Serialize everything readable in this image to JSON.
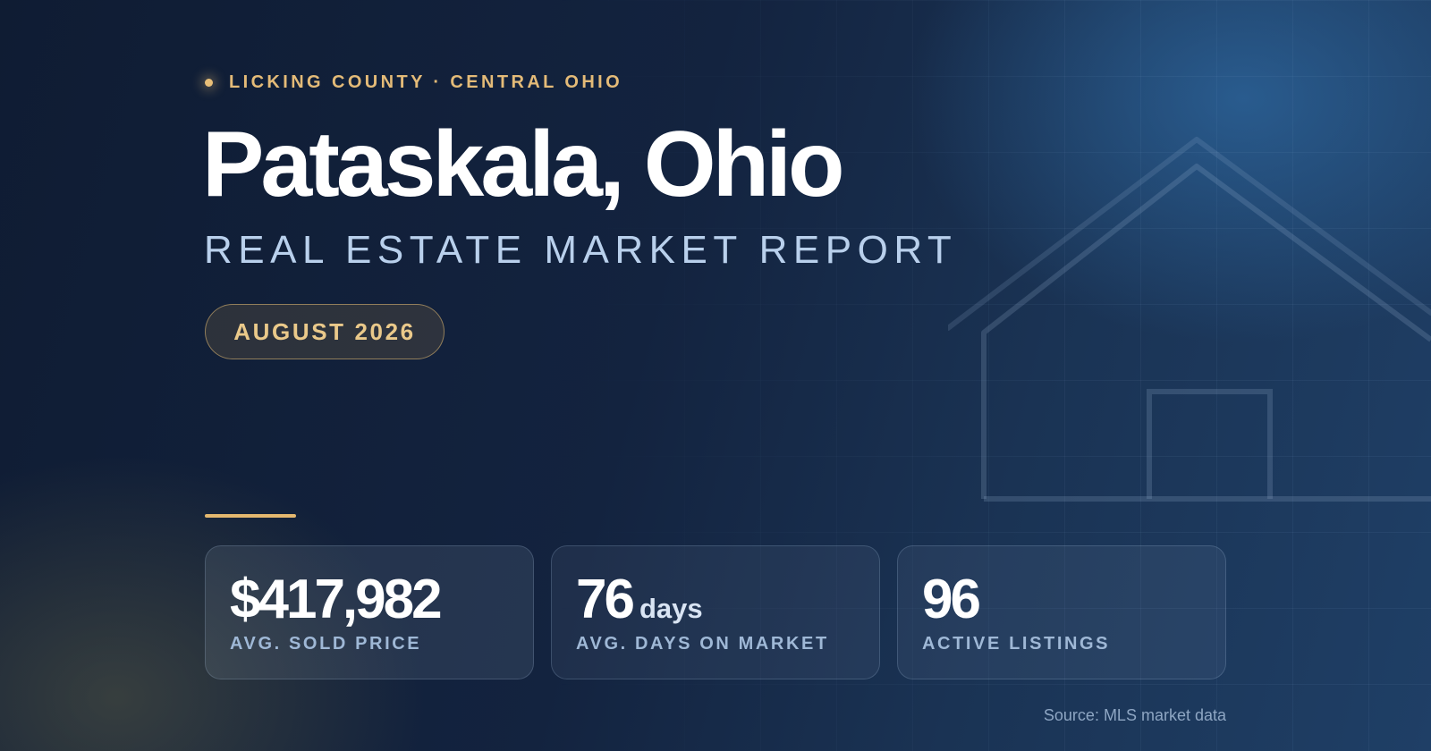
{
  "header": {
    "eyebrow": "LICKING COUNTY · CENTRAL OHIO",
    "title": "Pataskala, Ohio",
    "subtitle": "REAL ESTATE MARKET REPORT",
    "date_badge": "AUGUST 2026"
  },
  "stats": [
    {
      "value": "$417,982",
      "unit": "",
      "label": "AVG. SOLD PRICE"
    },
    {
      "value": "76",
      "unit": "days",
      "label": "AVG. DAYS ON MARKET"
    },
    {
      "value": "96",
      "unit": "",
      "label": "ACTIVE LISTINGS"
    }
  ],
  "footer": {
    "source": "Source: MLS market data"
  },
  "icons": {
    "house": "house-outline-icon",
    "eyebrow_dot": "dot-icon"
  },
  "colors": {
    "accent_gold": "#e4b86f",
    "subtitle_blue": "#b9d0ec",
    "background_navy": "#13233d"
  }
}
